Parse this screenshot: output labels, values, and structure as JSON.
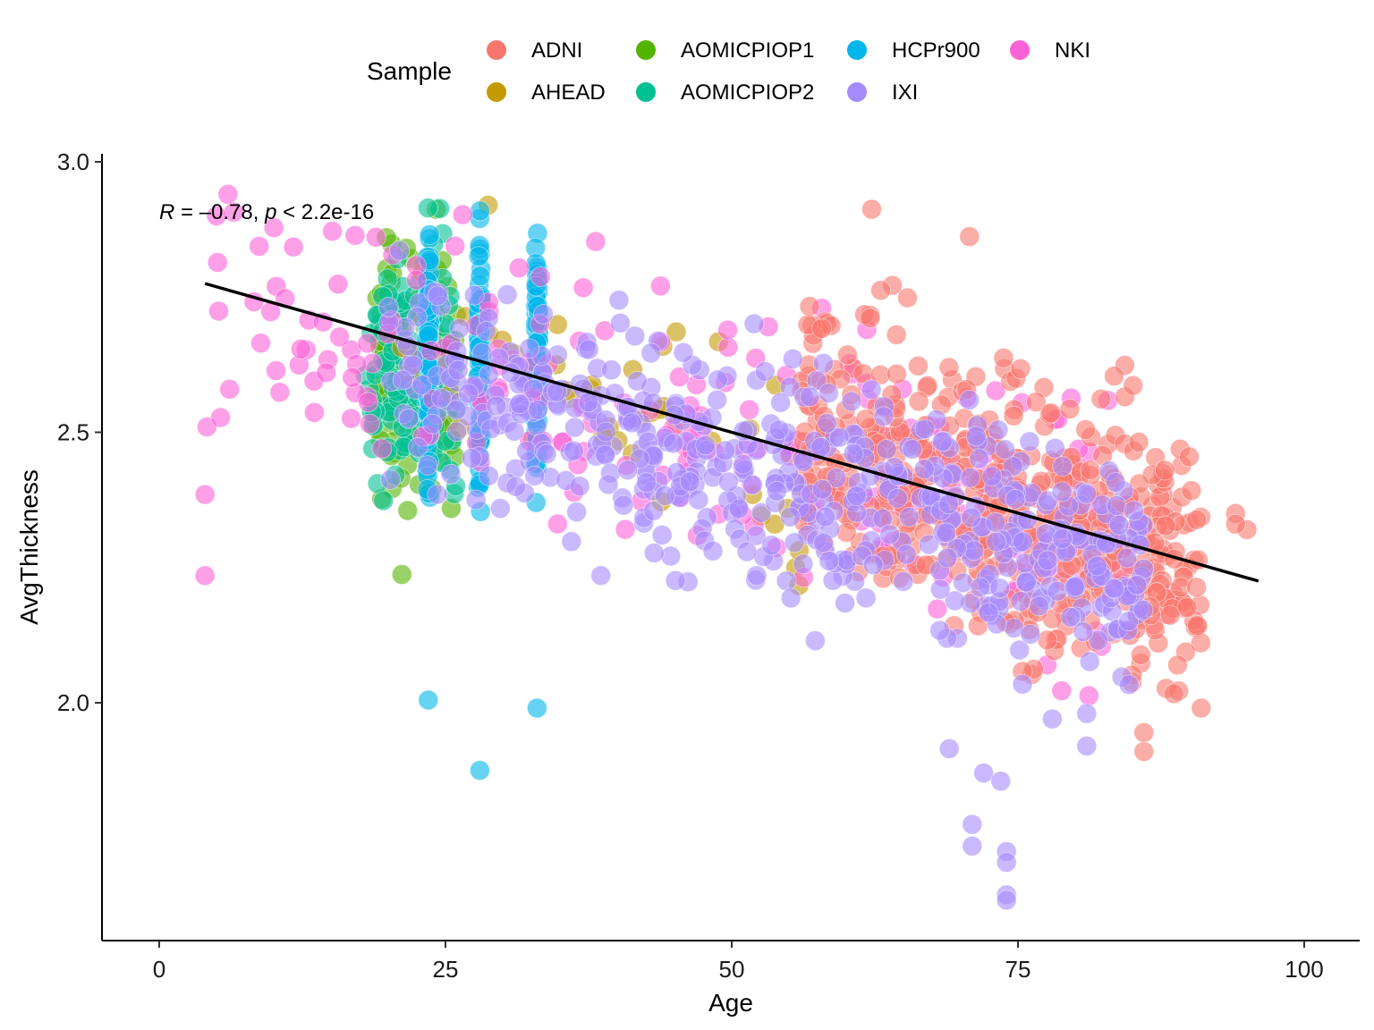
{
  "chart_data": {
    "type": "scatter",
    "title": "",
    "xlabel": "Age",
    "ylabel": "AvgThickness",
    "xlim": [
      -5,
      105
    ],
    "ylim": [
      1.62,
      3.02
    ],
    "xticks": [
      0,
      25,
      50,
      75,
      100
    ],
    "yticks": [
      2.0,
      2.5,
      3.0
    ],
    "xtick_labels": [
      "0",
      "25",
      "50",
      "75",
      "100"
    ],
    "ytick_labels": [
      "2.0",
      "2.5",
      "3.0"
    ],
    "grid": false,
    "legend": {
      "title": "Sample",
      "placement": "top",
      "entries": [
        "ADNI",
        "AHEAD",
        "AOMICPIOP1",
        "AOMICPIOP2",
        "HCPr900",
        "IXI",
        "NKI"
      ]
    },
    "annotation": {
      "r_symbol": "R",
      "r_text": " = –0.78, ",
      "p_symbol": "p",
      "p_text": " < 2.2e-16",
      "x": 0,
      "y": 2.895
    },
    "regression_line": {
      "x": [
        4,
        96
      ],
      "y": [
        2.775,
        2.225
      ],
      "color": "#000000"
    },
    "series": [
      {
        "name": "ADNI",
        "color": "#F8766D",
        "x_range": [
          56,
          91
        ],
        "y_center": 2.36,
        "slope": -0.0082,
        "ref_x": 75,
        "spread": 0.12,
        "count": 520
      },
      {
        "name": "AHEAD",
        "color": "#C49A00",
        "x_range": [
          21,
          56
        ],
        "y_center": 2.62,
        "slope": -0.006,
        "ref_x": 30,
        "spread": 0.1,
        "count": 50
      },
      {
        "name": "AOMICPIOP1",
        "color": "#53B400",
        "x_range": [
          19,
          26
        ],
        "y_center": 2.62,
        "slope": -0.005,
        "ref_x": 22,
        "spread": 0.12,
        "count": 130
      },
      {
        "name": "AOMICPIOP2",
        "color": "#00C094",
        "x_range": [
          18,
          26
        ],
        "y_center": 2.6,
        "slope": -0.005,
        "ref_x": 22,
        "spread": 0.1,
        "count": 160
      },
      {
        "name": "HCPr900",
        "color": "#00B6EB",
        "x_ages": [
          23.5,
          28,
          33
        ],
        "y_center": 2.64,
        "spread": 0.11,
        "count": 260
      },
      {
        "name": "IXI",
        "color": "#A58AFF",
        "x_range": [
          20,
          86
        ],
        "y_center": 2.45,
        "slope": -0.0055,
        "ref_x": 50,
        "spread": 0.1,
        "count": 560
      },
      {
        "name": "NKI",
        "color": "#FB61D7",
        "x_range": [
          4,
          86
        ],
        "y_center": 2.55,
        "slope": -0.0055,
        "ref_x": 40,
        "spread": 0.12,
        "count": 230
      }
    ],
    "outliers": [
      {
        "series": "HCPr900",
        "x": 23.5,
        "y": 2.005
      },
      {
        "series": "HCPr900",
        "x": 28,
        "y": 1.875
      },
      {
        "series": "HCPr900",
        "x": 33,
        "y": 1.99
      },
      {
        "series": "NKI",
        "x": 4,
        "y": 2.385
      },
      {
        "series": "NKI",
        "x": 4,
        "y": 2.235
      },
      {
        "series": "NKI",
        "x": 6,
        "y": 2.94
      },
      {
        "series": "NKI",
        "x": 5,
        "y": 2.9
      },
      {
        "series": "IXI",
        "x": 69,
        "y": 1.915
      },
      {
        "series": "IXI",
        "x": 72,
        "y": 1.87
      },
      {
        "series": "IXI",
        "x": 73.5,
        "y": 1.855
      },
      {
        "series": "IXI",
        "x": 71,
        "y": 1.775
      },
      {
        "series": "IXI",
        "x": 71,
        "y": 1.735
      },
      {
        "series": "IXI",
        "x": 74,
        "y": 1.725
      },
      {
        "series": "IXI",
        "x": 74,
        "y": 1.705
      },
      {
        "series": "IXI",
        "x": 74,
        "y": 1.645
      },
      {
        "series": "IXI",
        "x": 74,
        "y": 1.635
      },
      {
        "series": "IXI",
        "x": 78,
        "y": 1.97
      },
      {
        "series": "IXI",
        "x": 81,
        "y": 1.92
      },
      {
        "series": "IXI",
        "x": 81,
        "y": 1.98
      },
      {
        "series": "ADNI",
        "x": 86,
        "y": 1.91
      },
      {
        "series": "ADNI",
        "x": 86,
        "y": 1.945
      },
      {
        "series": "ADNI",
        "x": 91,
        "y": 1.99
      },
      {
        "series": "ADNI",
        "x": 94,
        "y": 2.35
      },
      {
        "series": "ADNI",
        "x": 95,
        "y": 2.32
      },
      {
        "series": "ADNI",
        "x": 94,
        "y": 2.33
      }
    ]
  }
}
